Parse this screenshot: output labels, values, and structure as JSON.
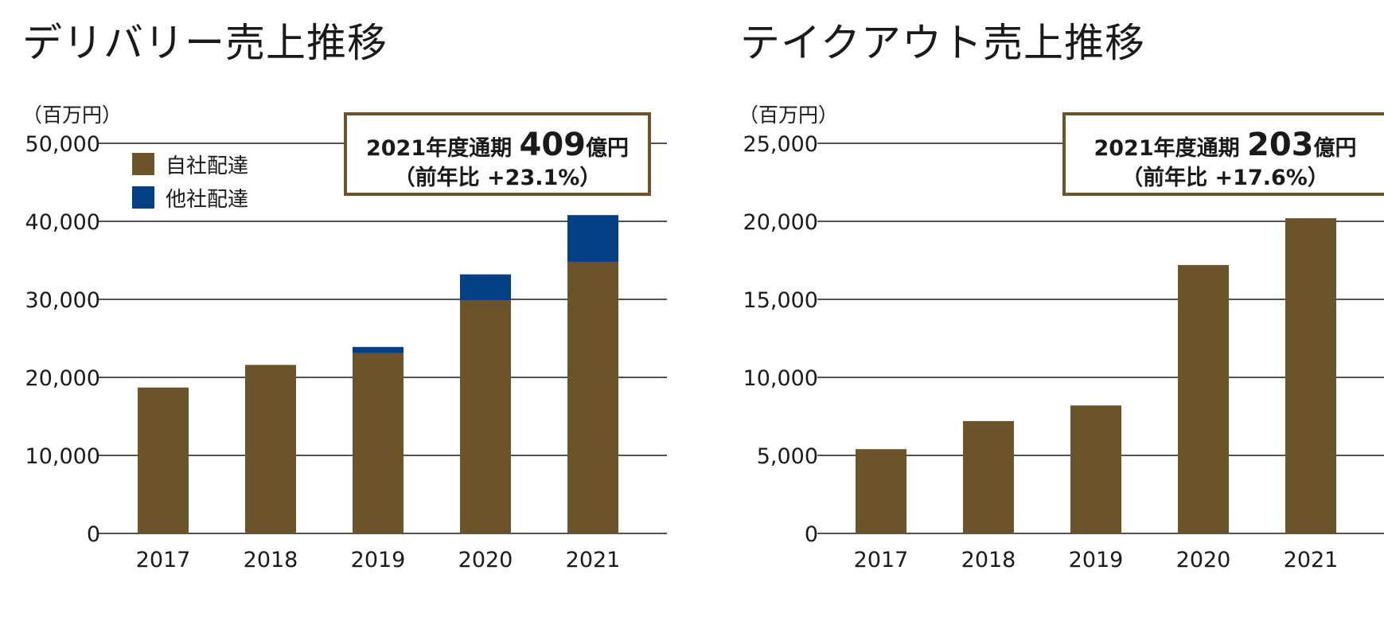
{
  "colors": {
    "own": "#6b5429",
    "other": "#043f85",
    "axis": "#1a1a1a",
    "box_border": "#6b5429"
  },
  "chart_data": [
    {
      "type": "bar",
      "stacked": true,
      "title": "デリバリー売上推移",
      "unit": "（百万円）",
      "categories": [
        "2017",
        "2018",
        "2019",
        "2020",
        "2021"
      ],
      "series": [
        {
          "name": "自社配達",
          "color": "#6b5429",
          "values": [
            18700,
            21600,
            23100,
            29900,
            34800
          ]
        },
        {
          "name": "他社配達",
          "color": "#043f85",
          "values": [
            0,
            0,
            800,
            3300,
            6000
          ]
        }
      ],
      "ylim": [
        0,
        50000
      ],
      "yticks": [
        "0",
        "10,000",
        "20,000",
        "30,000",
        "40,000",
        "50,000"
      ],
      "yticks_values": [
        0,
        10000,
        20000,
        30000,
        40000,
        50000
      ],
      "grid": true,
      "legend_position": "top-left",
      "callout": {
        "line1": "2021年度通期",
        "big": "409",
        "unit": "億円",
        "line2": "（前年比 +23.1%）"
      }
    },
    {
      "type": "bar",
      "title": "テイクアウト売上推移",
      "unit": "（百万円）",
      "categories": [
        "2017",
        "2018",
        "2019",
        "2020",
        "2021"
      ],
      "series": [
        {
          "color": "#6b5429",
          "values": [
            5400,
            7200,
            8200,
            17200,
            20200
          ]
        }
      ],
      "ylim": [
        0,
        25000
      ],
      "yticks": [
        "0",
        "5,000",
        "10,000",
        "15,000",
        "20,000",
        "25,000"
      ],
      "yticks_values": [
        0,
        5000,
        10000,
        15000,
        20000,
        25000
      ],
      "grid": true,
      "callout": {
        "line1": "2021年度通期",
        "big": "203",
        "unit": "億円",
        "line2": "（前年比 +17.6%）"
      }
    }
  ]
}
